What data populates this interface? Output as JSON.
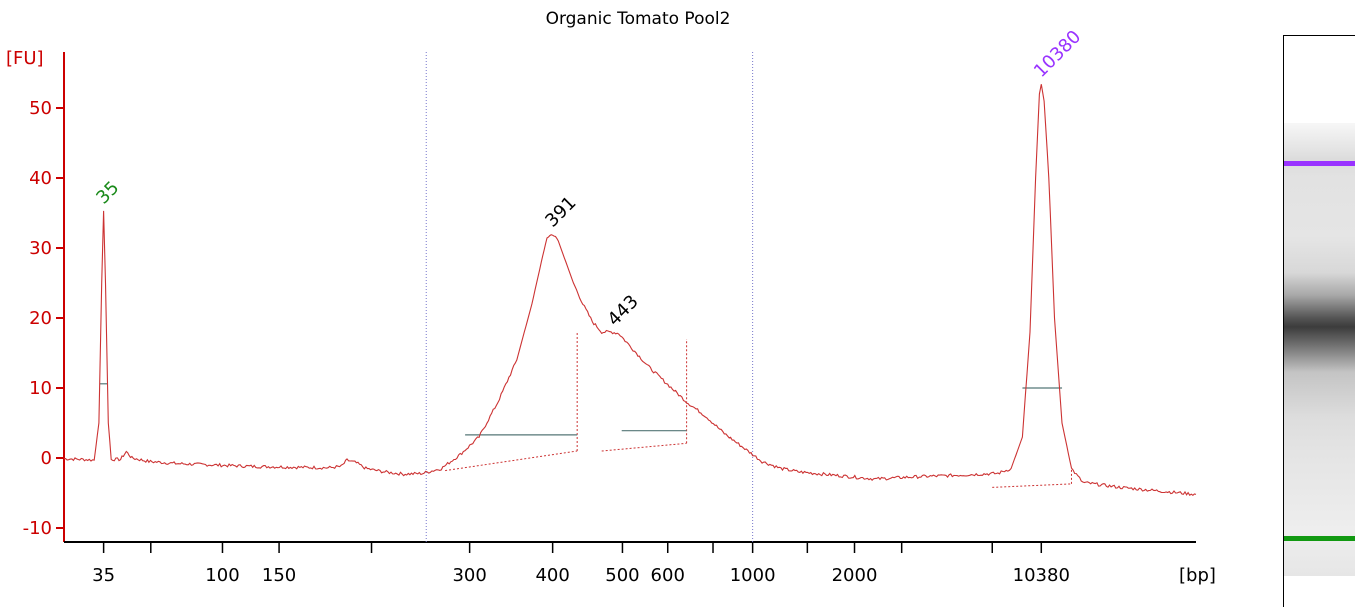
{
  "chart_data": {
    "type": "line",
    "title": "Organic Tomato Pool2",
    "ylabel": "[FU]",
    "xlabel": "[bp]",
    "ylim": [
      -12,
      58
    ],
    "yticks": [
      -10,
      0,
      10,
      20,
      30,
      40,
      50
    ],
    "xticks": [
      "35",
      "100",
      "150",
      "300",
      "400",
      "500",
      "600",
      "1000",
      "2000",
      "10380"
    ],
    "x_range_time": [
      15,
      75
    ],
    "x_tick_times": [
      17.1,
      23.4,
      26.4,
      36.5,
      40.9,
      44.6,
      47.0,
      51.5,
      56.9,
      66.8
    ],
    "unlabeled_tick_times": [
      19.6,
      31.3,
      49.4,
      54.4,
      59.4,
      64.2
    ],
    "region_markers_time": [
      34.2,
      51.5
    ],
    "series": [
      {
        "color": "#cc3333",
        "points": [
          [
            15.0,
            -0.1
          ],
          [
            16.0,
            -0.2
          ],
          [
            16.6,
            -0.3
          ],
          [
            16.85,
            5
          ],
          [
            17.0,
            25
          ],
          [
            17.1,
            35.3
          ],
          [
            17.2,
            25
          ],
          [
            17.35,
            5
          ],
          [
            17.5,
            -0.2
          ],
          [
            18.0,
            -0.2
          ],
          [
            18.3,
            0.9
          ],
          [
            18.6,
            0
          ],
          [
            19.5,
            -0.5
          ],
          [
            21.0,
            -0.8
          ],
          [
            23.0,
            -1.0
          ],
          [
            25.0,
            -1.2
          ],
          [
            27.0,
            -1.3
          ],
          [
            29.0,
            -1.4
          ],
          [
            29.7,
            -1.2
          ],
          [
            30.0,
            -0.3
          ],
          [
            30.5,
            -0.7
          ],
          [
            31.0,
            -1.5
          ],
          [
            32.0,
            -2.0
          ],
          [
            33.0,
            -2.3
          ],
          [
            34.0,
            -2.2
          ],
          [
            35.0,
            -1.5
          ],
          [
            36.0,
            0.5
          ],
          [
            37.0,
            3
          ],
          [
            38.0,
            8
          ],
          [
            39.0,
            14
          ],
          [
            39.8,
            22
          ],
          [
            40.3,
            28
          ],
          [
            40.6,
            31.5
          ],
          [
            40.9,
            32
          ],
          [
            41.2,
            31
          ],
          [
            41.6,
            28
          ],
          [
            42.0,
            25
          ],
          [
            42.5,
            22
          ],
          [
            43.0,
            19.5
          ],
          [
            43.5,
            18
          ],
          [
            44.0,
            18
          ],
          [
            44.4,
            17.8
          ],
          [
            45.0,
            16
          ],
          [
            46.0,
            13
          ],
          [
            47.0,
            10.5
          ],
          [
            48.0,
            8
          ],
          [
            49.0,
            6
          ],
          [
            50.0,
            3.5
          ],
          [
            51.0,
            1.5
          ],
          [
            52.0,
            -0.5
          ],
          [
            53.0,
            -1.5
          ],
          [
            54.0,
            -2
          ],
          [
            56.0,
            -2.5
          ],
          [
            58.0,
            -3
          ],
          [
            60.0,
            -2.7
          ],
          [
            62.0,
            -2.5
          ],
          [
            63.6,
            -2.3
          ],
          [
            64.5,
            -2.2
          ],
          [
            65.2,
            -1.5
          ],
          [
            65.8,
            3
          ],
          [
            66.2,
            18
          ],
          [
            66.5,
            40
          ],
          [
            66.7,
            52
          ],
          [
            66.8,
            53.4
          ],
          [
            66.95,
            51
          ],
          [
            67.2,
            40
          ],
          [
            67.5,
            20
          ],
          [
            67.9,
            5
          ],
          [
            68.4,
            -1.5
          ],
          [
            69.0,
            -3.5
          ],
          [
            71.0,
            -4.2
          ],
          [
            73.0,
            -4.7
          ],
          [
            75.0,
            -5.2
          ]
        ]
      }
    ],
    "peaks": [
      {
        "label": "35",
        "time": 17.1,
        "value": 35.3,
        "color": "#1a8a1a",
        "fwhm_time": [
          16.9,
          17.3
        ],
        "fwhm_value": 10.6
      },
      {
        "label": "391",
        "time": 40.9,
        "value": 32,
        "color": "#000000"
      },
      {
        "label": "443",
        "time": 44.2,
        "value": 17.9,
        "color": "#000000"
      },
      {
        "label": "10380",
        "time": 66.8,
        "value": 53.4,
        "color": "#9933ff",
        "fwhm_time": [
          65.8,
          67.9
        ],
        "fwhm_value": 10
      }
    ],
    "integration_regions": [
      {
        "start_time": 35.2,
        "end_time": 42.2,
        "baseline_start": -1.8,
        "baseline_end": 1.0,
        "peak_edge_value": 18,
        "level": 3.3
      },
      {
        "start_time": 43.5,
        "end_time": 48.0,
        "baseline_start": 1.0,
        "baseline_end": 2.1,
        "peak_edge_value": 17,
        "level": 3.9
      },
      {
        "start_time": 64.2,
        "end_time": 68.4,
        "baseline_start": -4.2,
        "baseline_end": -3.7,
        "peak_edge_value": -1.5,
        "level": null
      }
    ],
    "gel": {
      "upper_marker_color": "#9933ff",
      "lower_marker_color": "#119911"
    }
  }
}
